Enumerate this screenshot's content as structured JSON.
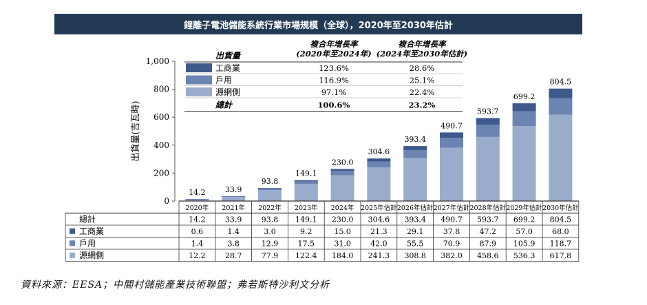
{
  "title": "鋰離子電池儲能系統行業市場規模（全球），2020年至2030年估計",
  "source": "資料來源：EESA；中關村儲能產業技術聯盟；弗若斯特沙利文分析",
  "chart_data": {
    "type": "bar",
    "stacked": true,
    "ylabel": "出貨量(吉瓦時)",
    "ylim": [
      0,
      1000
    ],
    "yticks": [
      "0",
      "200",
      "400",
      "600",
      "800",
      "1,000"
    ],
    "categories": [
      "2020年",
      "2021年",
      "2022年",
      "2023年",
      "2024年",
      "2025年估計",
      "2026年估計",
      "2027年估計",
      "2028年估計",
      "2029年估計",
      "2030年估計"
    ],
    "totals": [
      14.2,
      33.9,
      93.8,
      149.1,
      230.0,
      304.6,
      393.4,
      490.7,
      593.7,
      699.2,
      804.5
    ],
    "total_labels": [
      "14.2",
      "33.9",
      "93.8",
      "149.1",
      "230.0",
      "304.6",
      "393.4",
      "490.7",
      "593.7",
      "699.2",
      "804.5"
    ],
    "series": [
      {
        "name": "源網側",
        "color": "#9aaccc",
        "values": [
          12.2,
          28.7,
          77.9,
          122.4,
          184.0,
          241.3,
          308.8,
          382.0,
          458.6,
          536.3,
          617.8
        ],
        "labels": [
          "12.2",
          "28.7",
          "77.9",
          "122.4",
          "184.0",
          "241.3",
          "308.8",
          "382.0",
          "458.6",
          "536.3",
          "617.8"
        ]
      },
      {
        "name": "戶用",
        "color": "#6b84b2",
        "values": [
          1.4,
          3.8,
          12.9,
          17.5,
          31.0,
          42.0,
          55.5,
          70.9,
          87.9,
          105.9,
          118.7
        ],
        "labels": [
          "1.4",
          "3.8",
          "12.9",
          "17.5",
          "31.0",
          "42.0",
          "55.5",
          "70.9",
          "87.9",
          "105.9",
          "118.7"
        ]
      },
      {
        "name": "工商業",
        "color": "#3e5a8c",
        "values": [
          0.6,
          1.4,
          3.0,
          9.2,
          15.0,
          21.3,
          29.1,
          37.8,
          47.2,
          57.0,
          68.0
        ],
        "labels": [
          "0.6",
          "1.4",
          "3.0",
          "9.2",
          "15.0",
          "21.3",
          "29.1",
          "37.8",
          "47.2",
          "57.0",
          "68.0"
        ]
      }
    ],
    "legend_table": {
      "header_label": "出貨量",
      "col1_line1": "複合年增長率",
      "col1_line2": "(2020年至2024年)",
      "col2_line1": "複合年增長率",
      "col2_line2": "(2024年至2030年估計)",
      "rows": [
        {
          "name": "工商業",
          "color": "#3e5a8c",
          "cagr1": "123.6%",
          "cagr2": "28.6%"
        },
        {
          "name": "戶用",
          "color": "#6b84b2",
          "cagr1": "116.9%",
          "cagr2": "25.1%"
        },
        {
          "name": "源網側",
          "color": "#9aaccc",
          "cagr1": "97.1%",
          "cagr2": "22.4%"
        }
      ],
      "total_row": {
        "name": "總計",
        "cagr1": "100.6%",
        "cagr2": "23.2%"
      }
    },
    "table_total_label": "總計"
  }
}
